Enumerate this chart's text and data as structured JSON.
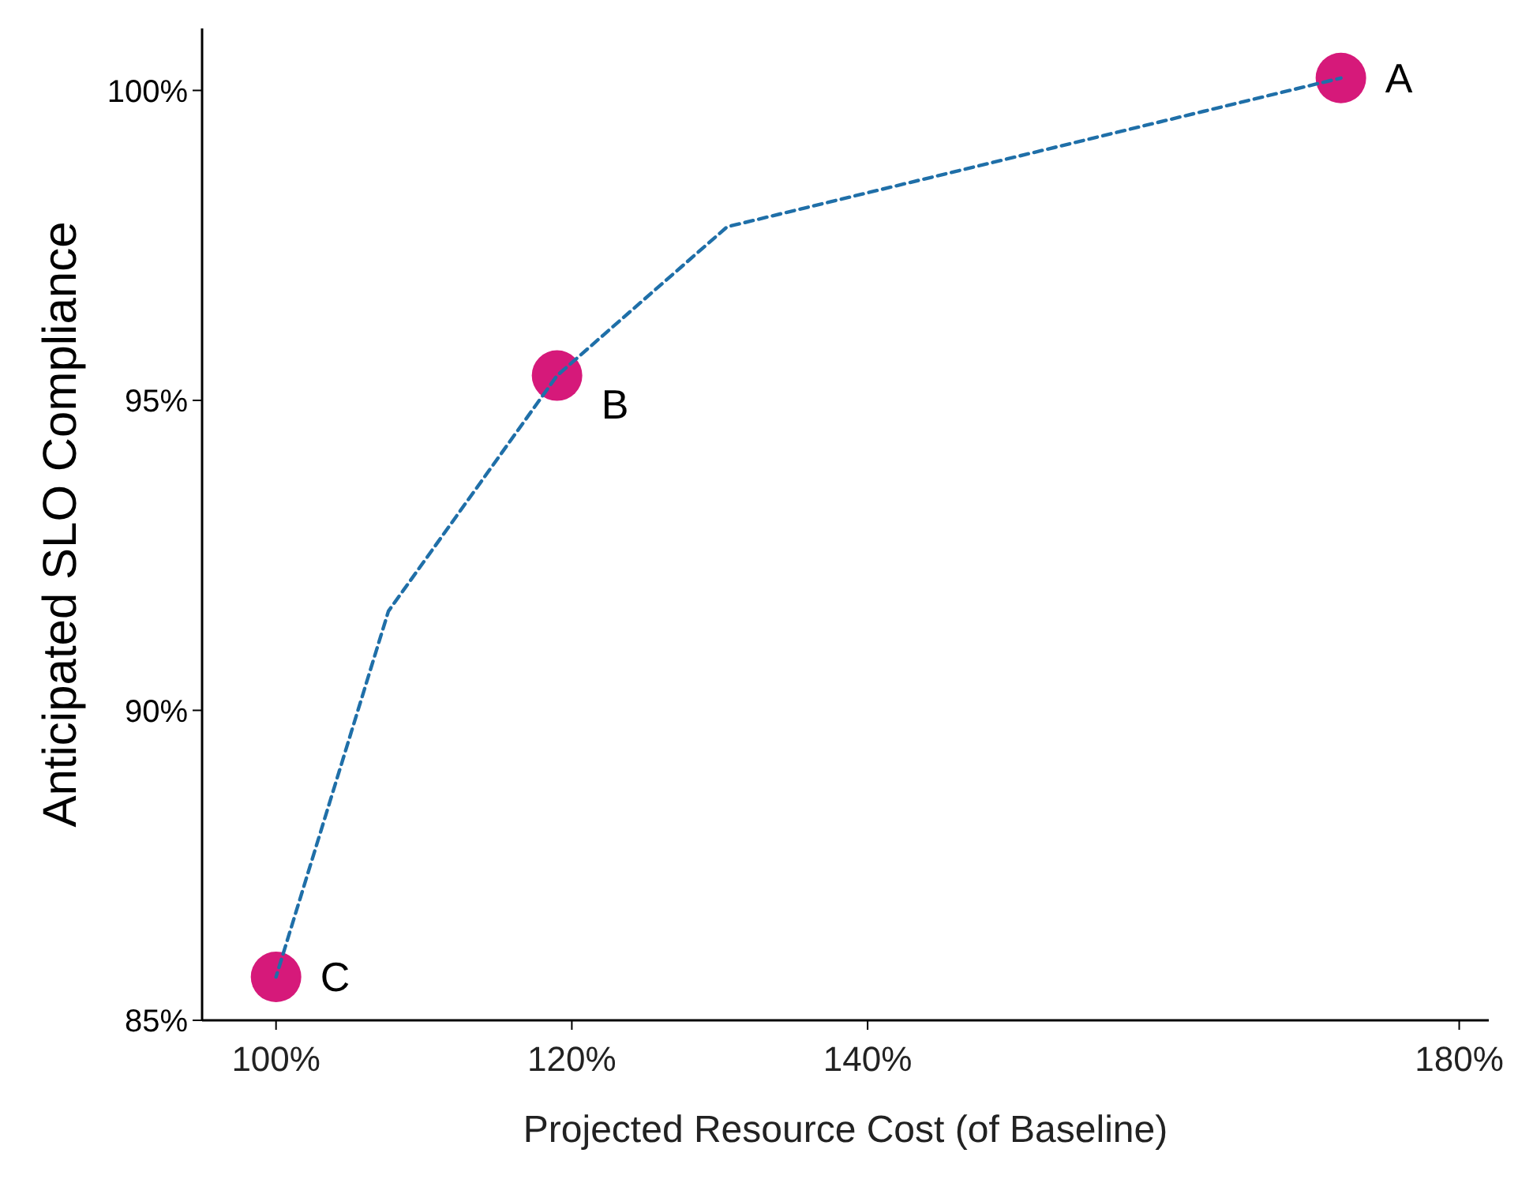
{
  "chart_data": {
    "type": "scatter",
    "xlabel": "Projected Resource Cost (of Baseline)",
    "ylabel": "Anticipated SLO Compliance",
    "xlim": [
      95,
      182
    ],
    "ylim": [
      85,
      101
    ],
    "xticks": [
      {
        "value": 100,
        "label": "100%"
      },
      {
        "value": 120,
        "label": "120%"
      },
      {
        "value": 140,
        "label": "140%"
      },
      {
        "value": 180,
        "label": "180%"
      }
    ],
    "yticks": [
      {
        "value": 85,
        "label": "85%"
      },
      {
        "value": 90,
        "label": "90%"
      },
      {
        "value": 95,
        "label": "95%"
      },
      {
        "value": 100,
        "label": "100%"
      }
    ],
    "grid": false,
    "series": [
      {
        "type": "line",
        "color": "#1f6fa8",
        "line_style": "dashed",
        "x": [
          100,
          107.6,
          119,
          130.5,
          172
        ],
        "values": [
          85.7,
          91.6,
          95.4,
          97.8,
          100.2
        ]
      },
      {
        "color": "#d6197a",
        "marker": "circle",
        "x": [
          172,
          119,
          100
        ],
        "values": [
          100.2,
          95.4,
          85.7
        ]
      }
    ],
    "annotations": [
      {
        "text": "A",
        "x": 172,
        "y": 100.2
      },
      {
        "text": "B",
        "x": 119,
        "y": 95.4
      },
      {
        "text": "C",
        "x": 100,
        "y": 85.7
      }
    ]
  }
}
